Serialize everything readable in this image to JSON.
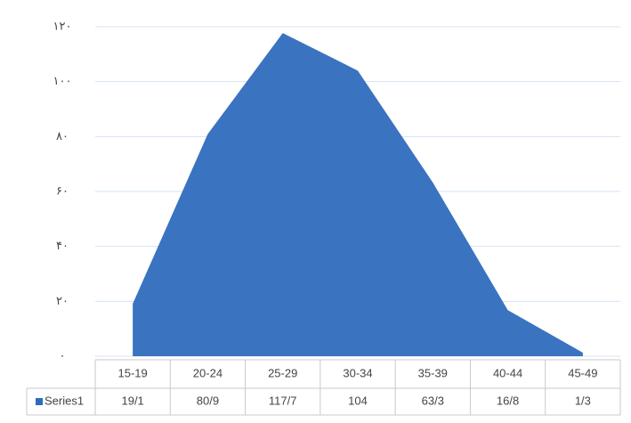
{
  "chart_data": {
    "type": "area",
    "categories": [
      "15-19",
      "20-24",
      "25-29",
      "30-34",
      "35-39",
      "40-44",
      "45-49"
    ],
    "series": [
      {
        "name": "Series1",
        "color": "#2f6bbd",
        "values": [
          19.1,
          80.9,
          117.7,
          104,
          63.3,
          16.8,
          1.3
        ],
        "value_labels": [
          "19/1",
          "80/9",
          "117/7",
          "104",
          "63/3",
          "16/8",
          "1/3"
        ]
      }
    ],
    "ylim": [
      0,
      120
    ],
    "yticks": [
      {
        "value": 0,
        "label": "۰"
      },
      {
        "value": 20,
        "label": "۲۰"
      },
      {
        "value": 40,
        "label": "۴۰"
      },
      {
        "value": 60,
        "label": "۶۰"
      },
      {
        "value": 80,
        "label": "۸۰"
      },
      {
        "value": 100,
        "label": "۱۰۰"
      },
      {
        "value": 120,
        "label": "۱۲۰"
      }
    ],
    "grid": true
  }
}
